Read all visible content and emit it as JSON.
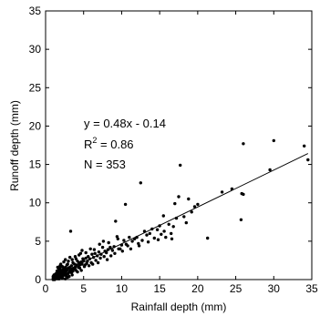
{
  "chart_data": {
    "type": "scatter",
    "title": "",
    "xlabel": "Rainfall depth (mm)",
    "ylabel": "Runoff depth (mm)",
    "xlim": [
      0,
      35
    ],
    "ylim": [
      0,
      35
    ],
    "xticks": [
      "0",
      "5",
      "10",
      "15",
      "20",
      "25",
      "30",
      "35"
    ],
    "yticks": [
      "0",
      "5",
      "10",
      "15",
      "20",
      "25",
      "30",
      "35"
    ],
    "grid": false,
    "legend": "none",
    "annotations": {
      "equation": "y = 0.48x - 0.14",
      "r2_base": "R",
      "r2_exp": "2",
      "r2_value": " = 0.86",
      "n": "N = 353"
    },
    "trendline": {
      "slope": 0.48,
      "intercept": -0.14,
      "x_range": [
        1.5,
        34.5
      ]
    },
    "points": [
      [
        34.5,
        15.6
      ],
      [
        34.0,
        17.4
      ],
      [
        30.0,
        18.1
      ],
      [
        29.5,
        14.3
      ],
      [
        26.0,
        17.7
      ],
      [
        25.8,
        11.2
      ],
      [
        25.7,
        7.8
      ],
      [
        26.0,
        11.1
      ],
      [
        24.5,
        11.8
      ],
      [
        23.2,
        11.4
      ],
      [
        21.3,
        5.4
      ],
      [
        20.0,
        9.8
      ],
      [
        19.6,
        9.5
      ],
      [
        19.2,
        8.8
      ],
      [
        18.8,
        10.5
      ],
      [
        18.5,
        7.4
      ],
      [
        18.2,
        8.2
      ],
      [
        17.7,
        14.9
      ],
      [
        17.5,
        10.8
      ],
      [
        17.2,
        8.0
      ],
      [
        17.0,
        9.9
      ],
      [
        16.8,
        6.9
      ],
      [
        16.5,
        6.0
      ],
      [
        16.2,
        7.2
      ],
      [
        15.8,
        5.5
      ],
      [
        15.5,
        8.3
      ],
      [
        15.2,
        5.9
      ],
      [
        15.0,
        7.0
      ],
      [
        14.7,
        6.5
      ],
      [
        14.3,
        5.4
      ],
      [
        14.0,
        6.6
      ],
      [
        13.7,
        6.0
      ],
      [
        13.3,
        5.8
      ],
      [
        13.0,
        6.3
      ],
      [
        12.7,
        5.1
      ],
      [
        12.5,
        12.6
      ],
      [
        12.2,
        4.7
      ],
      [
        12.0,
        5.5
      ],
      [
        11.7,
        5.3
      ],
      [
        11.4,
        5.0
      ],
      [
        11.0,
        5.5
      ],
      [
        10.8,
        4.4
      ],
      [
        10.5,
        9.8
      ],
      [
        10.3,
        5.1
      ],
      [
        10.0,
        4.5
      ],
      [
        9.8,
        4.0
      ],
      [
        9.5,
        5.3
      ],
      [
        9.2,
        7.6
      ],
      [
        9.0,
        4.3
      ],
      [
        8.8,
        3.8
      ],
      [
        8.5,
        4.2
      ],
      [
        8.2,
        3.9
      ],
      [
        8.0,
        3.5
      ],
      [
        7.8,
        3.7
      ],
      [
        7.5,
        4.2
      ],
      [
        7.3,
        3.3
      ],
      [
        7.0,
        3.6
      ],
      [
        6.8,
        3.1
      ],
      [
        6.5,
        3.4
      ],
      [
        6.3,
        2.9
      ],
      [
        6.1,
        3.3
      ],
      [
        6.0,
        2.2
      ],
      [
        5.8,
        2.7
      ],
      [
        5.6,
        3.0
      ],
      [
        5.5,
        2.4
      ],
      [
        5.3,
        2.8
      ],
      [
        5.2,
        1.9
      ],
      [
        5.0,
        2.5
      ],
      [
        4.9,
        2.7
      ],
      [
        4.8,
        2.0
      ],
      [
        4.7,
        2.3
      ],
      [
        4.6,
        3.4
      ],
      [
        4.5,
        1.9
      ],
      [
        4.4,
        2.2
      ],
      [
        4.3,
        1.6
      ],
      [
        4.2,
        2.4
      ],
      [
        4.1,
        1.9
      ],
      [
        4.0,
        2.7
      ],
      [
        3.9,
        1.6
      ],
      [
        3.8,
        2.0
      ],
      [
        3.7,
        1.5
      ],
      [
        3.6,
        2.2
      ],
      [
        3.5,
        1.3
      ],
      [
        3.4,
        1.8
      ],
      [
        3.3,
        6.3
      ],
      [
        3.3,
        1.2
      ],
      [
        3.2,
        1.6
      ],
      [
        3.1,
        1.0
      ],
      [
        3.0,
        1.5
      ],
      [
        3.0,
        0.8
      ],
      [
        2.9,
        1.3
      ],
      [
        2.8,
        1.9
      ],
      [
        2.8,
        0.7
      ],
      [
        2.7,
        1.1
      ],
      [
        2.6,
        0.9
      ],
      [
        2.6,
        1.6
      ],
      [
        2.5,
        0.6
      ],
      [
        2.5,
        1.2
      ],
      [
        2.4,
        0.8
      ],
      [
        2.4,
        1.4
      ],
      [
        2.3,
        0.5
      ],
      [
        2.3,
        1.0
      ],
      [
        2.2,
        0.7
      ],
      [
        2.2,
        1.7
      ],
      [
        2.1,
        0.4
      ],
      [
        2.1,
        0.9
      ],
      [
        2.0,
        0.6
      ],
      [
        2.0,
        1.2
      ],
      [
        1.9,
        0.3
      ],
      [
        1.9,
        0.8
      ],
      [
        1.9,
        1.5
      ],
      [
        1.8,
        0.5
      ],
      [
        1.8,
        1.0
      ],
      [
        1.7,
        0.2
      ],
      [
        1.7,
        0.7
      ],
      [
        1.7,
        1.3
      ],
      [
        1.6,
        0.4
      ],
      [
        1.6,
        0.9
      ],
      [
        1.6,
        0.1
      ],
      [
        1.5,
        0.6
      ],
      [
        1.5,
        0.3
      ],
      [
        1.5,
        1.1
      ],
      [
        1.4,
        0.2
      ],
      [
        1.4,
        0.5
      ],
      [
        1.4,
        0.8
      ],
      [
        1.3,
        0.1
      ],
      [
        1.3,
        0.4
      ],
      [
        1.3,
        0.7
      ],
      [
        1.2,
        0.2
      ],
      [
        1.2,
        0.5
      ],
      [
        1.2,
        0.0
      ],
      [
        1.1,
        0.3
      ],
      [
        1.1,
        0.6
      ],
      [
        1.1,
        0.1
      ],
      [
        1.0,
        0.2
      ],
      [
        1.0,
        0.4
      ],
      [
        1.0,
        0.0
      ],
      [
        2.9,
        0.3
      ],
      [
        2.7,
        0.5
      ],
      [
        3.4,
        0.9
      ],
      [
        3.6,
        1.1
      ],
      [
        3.8,
        1.4
      ],
      [
        4.0,
        1.2
      ],
      [
        4.2,
        1.0
      ],
      [
        4.5,
        1.5
      ],
      [
        4.7,
        1.2
      ],
      [
        5.1,
        1.7
      ],
      [
        5.4,
        2.1
      ],
      [
        5.7,
        1.8
      ],
      [
        6.2,
        2.0
      ],
      [
        6.6,
        2.5
      ],
      [
        6.9,
        2.2
      ],
      [
        7.2,
        2.8
      ],
      [
        7.7,
        3.0
      ],
      [
        8.1,
        2.6
      ],
      [
        8.6,
        3.1
      ],
      [
        9.1,
        3.4
      ],
      [
        9.6,
        4.0
      ],
      [
        10.1,
        3.7
      ],
      [
        10.6,
        4.6
      ],
      [
        11.2,
        4.0
      ],
      [
        12.3,
        4.4
      ],
      [
        13.5,
        4.9
      ],
      [
        14.8,
        5.2
      ],
      [
        15.6,
        6.3
      ],
      [
        16.6,
        5.3
      ],
      [
        2.0,
        2.0
      ],
      [
        2.4,
        2.3
      ],
      [
        2.6,
        2.6
      ],
      [
        3.0,
        2.4
      ],
      [
        3.2,
        2.9
      ],
      [
        3.5,
        2.6
      ],
      [
        3.9,
        3.0
      ],
      [
        4.4,
        3.2
      ],
      [
        4.8,
        3.8
      ],
      [
        5.3,
        3.5
      ],
      [
        5.9,
        4.0
      ],
      [
        6.4,
        3.9
      ],
      [
        7.1,
        4.6
      ],
      [
        7.6,
        5.0
      ],
      [
        8.3,
        4.8
      ],
      [
        9.4,
        5.6
      ],
      [
        1.8,
        0.1
      ],
      [
        2.2,
        0.2
      ],
      [
        2.6,
        0.1
      ],
      [
        3.1,
        0.4
      ],
      [
        3.5,
        0.6
      ],
      [
        1.6,
        1.6
      ],
      [
        1.9,
        1.8
      ],
      [
        2.3,
        1.3
      ],
      [
        2.7,
        1.4
      ],
      [
        2.9,
        2.0
      ]
    ]
  }
}
